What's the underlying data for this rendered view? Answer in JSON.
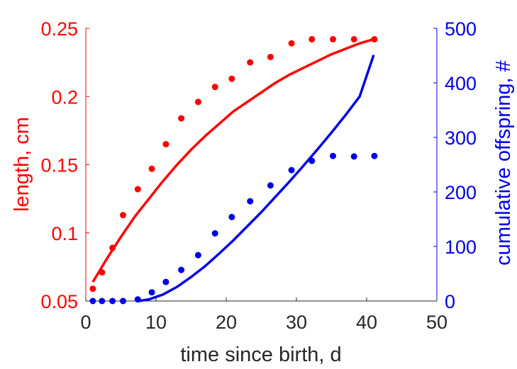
{
  "chart_data": {
    "type": "scatter",
    "xlabel": "time since birth, d",
    "ylabel_left": "length, cm",
    "ylabel_right": "cumulative offspring, #",
    "xlim": [
      0,
      50
    ],
    "ylim_left": [
      0.05,
      0.25
    ],
    "ylim_right": [
      0,
      500
    ],
    "xticks": [
      "0",
      "10",
      "20",
      "30",
      "40",
      "50"
    ],
    "yticks_left": [
      "0.05",
      "0.1",
      "0.15",
      "0.2",
      "0.25"
    ],
    "yticks_right": [
      "0",
      "100",
      "200",
      "300",
      "400",
      "500"
    ],
    "grid": false,
    "colors": {
      "length": "#ff0000",
      "offspring": "#0000e6",
      "axis_text": "#262626"
    },
    "series": [
      {
        "axis": "left",
        "kind": "points",
        "x": [
          1,
          2.3,
          3.8,
          5.3,
          7.4,
          9.4,
          11.4,
          13.6,
          16,
          18.4,
          20.8,
          23.4,
          26.3,
          29.3,
          32.2,
          35.2,
          38.2,
          41.1
        ],
        "y": [
          0.059,
          0.071,
          0.089,
          0.113,
          0.132,
          0.147,
          0.165,
          0.184,
          0.196,
          0.207,
          0.213,
          0.225,
          0.229,
          0.239,
          0.242,
          0.242,
          0.242,
          0.242
        ]
      },
      {
        "axis": "left",
        "kind": "line",
        "x": [
          1,
          3,
          5,
          7,
          9,
          11,
          13,
          15,
          17,
          19,
          21,
          23,
          25,
          27,
          29,
          31,
          33,
          35,
          37,
          39,
          41
        ],
        "y": [
          0.064,
          0.081,
          0.097,
          0.112,
          0.125,
          0.138,
          0.15,
          0.161,
          0.171,
          0.18,
          0.189,
          0.196,
          0.203,
          0.21,
          0.216,
          0.221,
          0.226,
          0.231,
          0.235,
          0.239,
          0.242
        ]
      },
      {
        "axis": "right",
        "kind": "points",
        "x": [
          1,
          2.3,
          3.8,
          5.3,
          7.4,
          9.4,
          11.4,
          13.6,
          16,
          18.4,
          20.8,
          23.4,
          26.3,
          29.3,
          32.2,
          35.2,
          38.2,
          41.1
        ],
        "y": [
          0,
          0,
          0,
          0,
          3,
          16,
          35,
          57,
          84,
          124,
          154,
          183,
          212,
          240,
          257,
          266,
          265,
          266
        ]
      },
      {
        "axis": "right",
        "kind": "line",
        "x": [
          7.5,
          9,
          11,
          13,
          15,
          17,
          19,
          21,
          23,
          25,
          27,
          29,
          31,
          33,
          35,
          37,
          39,
          41
        ],
        "y": [
          0,
          3,
          12,
          26,
          44,
          64,
          87,
          111,
          137,
          163,
          191,
          219,
          248,
          278,
          309,
          341,
          375,
          451
        ]
      }
    ]
  }
}
